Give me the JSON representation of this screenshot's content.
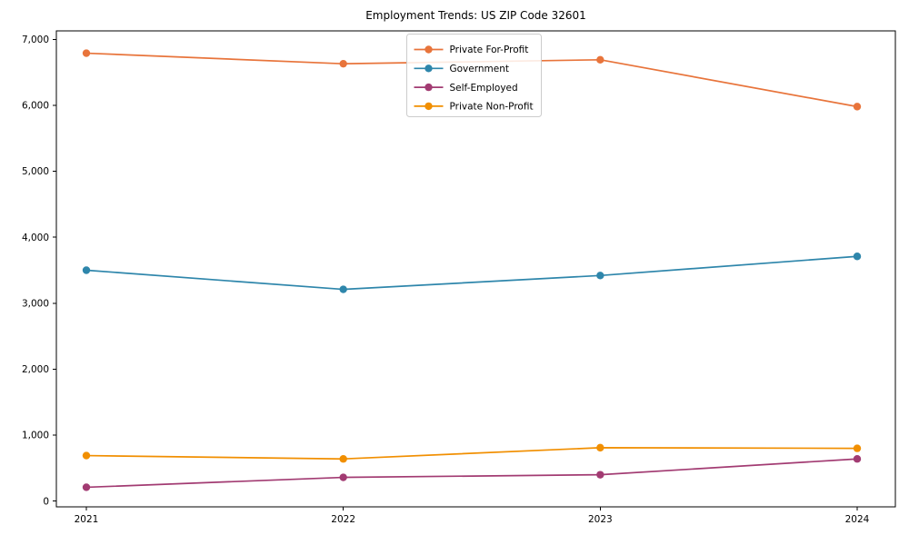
{
  "figure": {
    "background": "#ffffff",
    "axis_color": "#000000",
    "legend_border_color": "#cccccc",
    "legend_background": "#ffffff"
  },
  "chart_data": {
    "type": "line",
    "title": "Employment Trends: US ZIP Code 32601",
    "xlabel": "",
    "ylabel": "",
    "x": [
      "2021",
      "2022",
      "2023",
      "2024"
    ],
    "ylim": [
      0,
      7000
    ],
    "ytick_step": 1000,
    "ytick_labels": [
      "0",
      "1,000",
      "2,000",
      "3,000",
      "4,000",
      "5,000",
      "6,000",
      "7,000"
    ],
    "grid": false,
    "legend_position": "upper center",
    "marker": "circle",
    "series": [
      {
        "name": "Private For-Profit",
        "color": "#E8743B",
        "values": [
          6790,
          6630,
          6690,
          5980
        ]
      },
      {
        "name": "Government",
        "color": "#2E86AB",
        "values": [
          3500,
          3210,
          3420,
          3710
        ]
      },
      {
        "name": "Self-Employed",
        "color": "#A23B72",
        "values": [
          210,
          360,
          400,
          640
        ]
      },
      {
        "name": "Private Non-Profit",
        "color": "#F18F01",
        "values": [
          690,
          640,
          810,
          800
        ]
      }
    ]
  }
}
